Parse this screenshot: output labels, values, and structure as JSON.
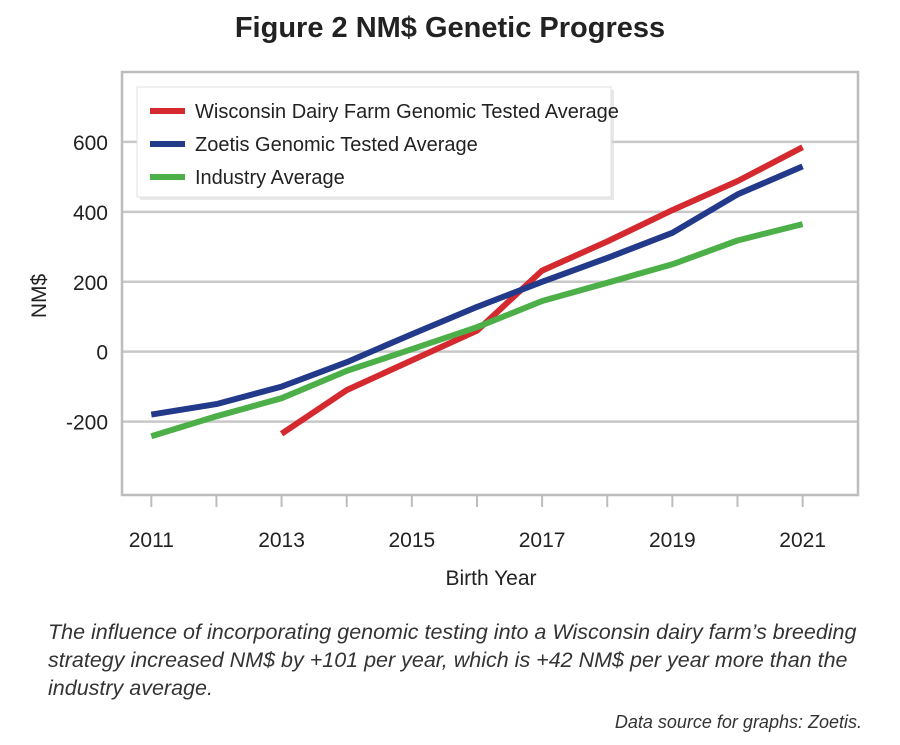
{
  "chart_data": {
    "type": "line",
    "title": "Figure 2 NM$ Genetic Progress",
    "xlabel": "Birth Year",
    "ylabel": "NM$",
    "xlim": [
      2010.55,
      2021.85
    ],
    "ylim": [
      -410,
      800
    ],
    "x_ticks": [
      2011,
      2013,
      2015,
      2017,
      2019,
      2021
    ],
    "y_ticks": [
      -200,
      0,
      200,
      400,
      600
    ],
    "grid": true,
    "legend_position": "top-left",
    "series": [
      {
        "name": "Wisconsin Dairy Farm Genomic Tested Average",
        "color": "#d42a2f",
        "x": [
          2013,
          2014,
          2015,
          2016,
          2017,
          2018,
          2019,
          2020,
          2021
        ],
        "y": [
          -235,
          -110,
          -25,
          60,
          232,
          315,
          405,
          488,
          585
        ]
      },
      {
        "name": "Zoetis Genomic Tested Average",
        "color": "#233a8b",
        "x": [
          2011,
          2012,
          2013,
          2014,
          2015,
          2016,
          2017,
          2018,
          2019,
          2020,
          2021
        ],
        "y": [
          -180,
          -150,
          -100,
          -30,
          50,
          128,
          200,
          268,
          340,
          450,
          530
        ]
      },
      {
        "name": "Industry Average",
        "color": "#4caf48",
        "x": [
          2011,
          2012,
          2013,
          2014,
          2015,
          2016,
          2017,
          2018,
          2019,
          2020,
          2021
        ],
        "y": [
          -242,
          -185,
          -133,
          -55,
          7,
          70,
          145,
          197,
          250,
          318,
          365
        ]
      }
    ]
  },
  "caption": "The influence of incorporating genomic testing into a Wisconsin dairy farm’s breeding strategy increased  NM$ by +101 per year, which is +42 NM$ per year more than the industry average.",
  "source": "Data source for graphs: Zoetis."
}
